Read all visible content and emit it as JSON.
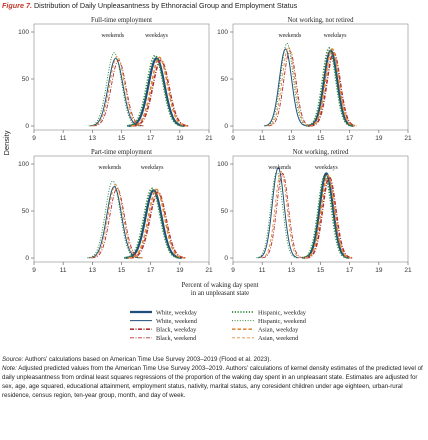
{
  "figure": {
    "number": "Figure 7.",
    "title": "Distribution of Daily Unpleasantness by Ethnoracial Group and Employment Status"
  },
  "caption": {
    "source_label": "Source:",
    "source_text": "Authors’ calculations based on American Time Use Survey 2003–2019 (Flood et al. 2023).",
    "note_label": "Note:",
    "note_text": "Adjusted predicted values from the American Time Use Survey 2003–2019. Authors’ calculations of kernel density estimates of the predicted level of daily unpleasantness from ordinal least squares regressions of the proportion of the waking day spent in an unpleasant state. Estimates are adjusted for sex, age, age squared, educational attainment, employment status, nativity, marital status, any coresident children under age eighteen, urban-rural residence, census region, ten-year group, month, and day of week."
  },
  "chart_data": {
    "type": "line",
    "ylabel": "Density",
    "xlabel_lines": [
      "Percent of waking day spent",
      "in an unpleasant state"
    ],
    "x_ticks": [
      9,
      11,
      13,
      15,
      17,
      19,
      21
    ],
    "y_ticks": [
      0,
      50,
      100
    ],
    "xlim": [
      9,
      21
    ],
    "ylim": [
      0,
      100
    ],
    "colors": {
      "white": "#1f4e79",
      "hispanic": "#2e8b3a",
      "black": "#b03030",
      "asian": "#e08a3c"
    },
    "legend": [
      {
        "key": "white_weekday",
        "label": "White, weekday",
        "color": "#1f4e79",
        "style": "solid-thick"
      },
      {
        "key": "hispanic_weekday",
        "label": "Hispanic, weekday",
        "color": "#2e8b3a",
        "style": "dotted-thick"
      },
      {
        "key": "white_weekend",
        "label": "White, weekend",
        "color": "#1f4e79",
        "style": "solid"
      },
      {
        "key": "hispanic_weekend",
        "label": "Hispanic, weekend",
        "color": "#2e8b3a",
        "style": "dotted"
      },
      {
        "key": "black_weekday",
        "label": "Black, weekday",
        "color": "#b03030",
        "style": "dashdot-thick"
      },
      {
        "key": "asian_weekday",
        "label": "Asian, weekday",
        "color": "#e08a3c",
        "style": "dashed-thick"
      },
      {
        "key": "black_weekend",
        "label": "Black, weekend",
        "color": "#b03030",
        "style": "dashdot"
      },
      {
        "key": "asian_weekend",
        "label": "Asian, weekend",
        "color": "#e08a3c",
        "style": "dashed"
      }
    ],
    "panels": [
      {
        "title": "Full-time employment",
        "annotations": [
          {
            "text": "weekends",
            "x": 14.4
          },
          {
            "text": "weekdays",
            "x": 17.4
          }
        ],
        "series": {
          "white_weekday": {
            "center": 17.4,
            "peak": 72,
            "width": 0.55
          },
          "white_weekend": {
            "center": 14.6,
            "peak": 72,
            "width": 0.5
          },
          "hispanic_weekday": {
            "center": 17.3,
            "peak": 75,
            "width": 0.55
          },
          "hispanic_weekend": {
            "center": 14.5,
            "peak": 78,
            "width": 0.5
          },
          "black_weekday": {
            "center": 17.7,
            "peak": 70,
            "width": 0.55
          },
          "black_weekend": {
            "center": 14.8,
            "peak": 70,
            "width": 0.5
          },
          "asian_weekday": {
            "center": 17.6,
            "peak": 73,
            "width": 0.55
          },
          "asian_weekend": {
            "center": 14.7,
            "peak": 74,
            "width": 0.5
          }
        }
      },
      {
        "title": "Not working, not retired",
        "annotations": [
          {
            "text": "weekends",
            "x": 12.9
          },
          {
            "text": "weekdays",
            "x": 16.0
          }
        ],
        "series": {
          "white_weekday": {
            "center": 15.7,
            "peak": 80,
            "width": 0.45
          },
          "white_weekend": {
            "center": 12.6,
            "peak": 82,
            "width": 0.42
          },
          "hispanic_weekday": {
            "center": 15.6,
            "peak": 83,
            "width": 0.45
          },
          "hispanic_weekend": {
            "center": 12.7,
            "peak": 88,
            "width": 0.42
          },
          "black_weekday": {
            "center": 15.9,
            "peak": 78,
            "width": 0.45
          },
          "black_weekend": {
            "center": 12.9,
            "peak": 80,
            "width": 0.42
          },
          "asian_weekday": {
            "center": 15.8,
            "peak": 82,
            "width": 0.45
          },
          "asian_weekend": {
            "center": 12.8,
            "peak": 84,
            "width": 0.42
          }
        }
      },
      {
        "title": "Part-time employment",
        "annotations": [
          {
            "text": "weekends",
            "x": 14.2
          },
          {
            "text": "weekdays",
            "x": 17.1
          }
        ],
        "series": {
          "white_weekday": {
            "center": 17.2,
            "peak": 72,
            "width": 0.55
          },
          "white_weekend": {
            "center": 14.5,
            "peak": 76,
            "width": 0.5
          },
          "hispanic_weekday": {
            "center": 17.1,
            "peak": 74,
            "width": 0.55
          },
          "hispanic_weekend": {
            "center": 14.4,
            "peak": 82,
            "width": 0.5
          },
          "black_weekday": {
            "center": 17.5,
            "peak": 70,
            "width": 0.55
          },
          "black_weekend": {
            "center": 14.7,
            "peak": 74,
            "width": 0.5
          },
          "asian_weekday": {
            "center": 17.4,
            "peak": 73,
            "width": 0.55
          },
          "asian_weekend": {
            "center": 14.6,
            "peak": 78,
            "width": 0.5
          }
        }
      },
      {
        "title": "Not working, retired",
        "annotations": [
          {
            "text": "weekends",
            "x": 12.2
          },
          {
            "text": "weekdays",
            "x": 15.4
          }
        ],
        "series": {
          "white_weekday": {
            "center": 15.4,
            "peak": 90,
            "width": 0.45
          },
          "white_weekend": {
            "center": 12.1,
            "peak": 96,
            "width": 0.4
          },
          "hispanic_weekday": {
            "center": 15.3,
            "peak": 88,
            "width": 0.45
          },
          "hispanic_weekend": {
            "center": 12.0,
            "peak": 92,
            "width": 0.4
          },
          "black_weekday": {
            "center": 15.6,
            "peak": 86,
            "width": 0.45
          },
          "black_weekend": {
            "center": 12.4,
            "peak": 90,
            "width": 0.4
          },
          "asian_weekday": {
            "center": 15.5,
            "peak": 88,
            "width": 0.45
          },
          "asian_weekend": {
            "center": 12.3,
            "peak": 92,
            "width": 0.4
          }
        }
      }
    ]
  }
}
